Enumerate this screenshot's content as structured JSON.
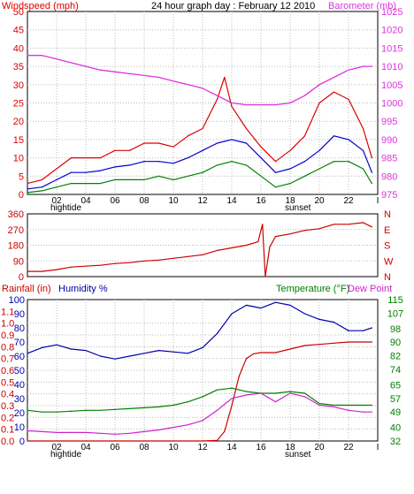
{
  "colors": {
    "wind": "#dd0000",
    "gust": "#dd0000",
    "avgwind": "#0000cc",
    "lowwind": "#008000",
    "baro": "#dd33dd",
    "direction": "#cc0000",
    "rain": "#cc0000",
    "humidity": "#0000aa",
    "temperature": "#008000",
    "dewpoint": "#cc22cc",
    "axis": "#000000",
    "grid": "#b8b8b8"
  },
  "header": {
    "wind_label": "Windspeed (mph)",
    "title": "24 hour graph day : February 12 2010",
    "baro_label": "Barometer (mb)",
    "rain_label": "Rainfall (in)",
    "humidity_label": "Humidity %",
    "temp_label": "Temperature (°F)",
    "dew_label": "Dew Point"
  },
  "markers": {
    "hightide": "hightide",
    "sunset": "sunset"
  },
  "chart_data": [
    {
      "id": "wind",
      "type": "line",
      "title": "24 hour graph day : February 12 2010",
      "x_ticks": [
        "02",
        "04",
        "06",
        "08",
        "10",
        "12",
        "14",
        "16",
        "18",
        "20",
        "22",
        "I"
      ],
      "xlim": [
        0,
        24
      ],
      "y_left": {
        "label": "Windspeed (mph)",
        "ticks": [
          0,
          5,
          10,
          15,
          20,
          25,
          30,
          35,
          40,
          45,
          50
        ],
        "lim": [
          0,
          50
        ]
      },
      "y_right": {
        "label": "Barometer (mb)",
        "ticks": [
          975,
          980,
          985,
          990,
          995,
          1000,
          1005,
          1010,
          1015,
          1020,
          1025
        ],
        "lim": [
          975,
          1025
        ]
      },
      "grid": true,
      "series": [
        {
          "key": "gust",
          "axis": "left",
          "x": [
            0,
            1,
            2,
            3,
            4,
            5,
            6,
            7,
            8,
            9,
            10,
            11,
            12,
            13,
            13.5,
            14,
            15,
            16,
            17,
            18,
            19,
            20,
            21,
            22,
            23,
            23.6
          ],
          "y": [
            3,
            4,
            7,
            10,
            10,
            10,
            12,
            12,
            14,
            14,
            13,
            16,
            18,
            26,
            32,
            24,
            18,
            13,
            9,
            12,
            16,
            25,
            28,
            26,
            18,
            10
          ]
        },
        {
          "key": "avgwind",
          "axis": "left",
          "x": [
            0,
            1,
            2,
            3,
            4,
            5,
            6,
            7,
            8,
            9,
            10,
            11,
            12,
            13,
            14,
            15,
            16,
            17,
            18,
            19,
            20,
            21,
            22,
            23,
            23.6
          ],
          "y": [
            1.5,
            2,
            4,
            6,
            6,
            6.5,
            7.5,
            8,
            9,
            9,
            8.5,
            10,
            12,
            14,
            15,
            14,
            10,
            6,
            7,
            9,
            12,
            16,
            15,
            12,
            6
          ]
        },
        {
          "key": "lowwind",
          "axis": "left",
          "x": [
            0,
            1,
            2,
            3,
            4,
            5,
            6,
            7,
            8,
            9,
            10,
            11,
            12,
            13,
            14,
            15,
            16,
            17,
            18,
            19,
            20,
            21,
            22,
            23,
            23.6
          ],
          "y": [
            0.5,
            1,
            2,
            3,
            3,
            3,
            4,
            4,
            4,
            5,
            4,
            5,
            6,
            8,
            9,
            8,
            5,
            2,
            3,
            5,
            7,
            9,
            9,
            7,
            3
          ]
        },
        {
          "key": "baro",
          "axis": "right",
          "x": [
            0,
            1,
            2,
            3,
            4,
            5,
            6,
            7,
            8,
            9,
            10,
            11,
            12,
            13,
            14,
            15,
            16,
            17,
            18,
            19,
            20,
            21,
            22,
            23,
            23.6
          ],
          "y": [
            1013,
            1013,
            1012,
            1011,
            1010,
            1009,
            1008.5,
            1008,
            1007.5,
            1007,
            1006,
            1005,
            1004,
            1002,
            1000,
            999.5,
            999.5,
            999.5,
            1000,
            1002,
            1005,
            1007,
            1009,
            1010,
            1010
          ]
        }
      ]
    },
    {
      "id": "direction",
      "type": "line",
      "x_ticks": [
        "02",
        "04",
        "06",
        "08",
        "10",
        "12",
        "14",
        "16",
        "18",
        "20",
        "22",
        "I"
      ],
      "xlim": [
        0,
        24
      ],
      "y_left": {
        "ticks": [
          0,
          90,
          180,
          270,
          360
        ],
        "lim": [
          0,
          360
        ]
      },
      "y_right": {
        "ticks": [
          "N",
          "W",
          "S",
          "E",
          "N"
        ]
      },
      "grid": true,
      "series": [
        {
          "key": "direction",
          "axis": "left",
          "x": [
            0,
            1,
            2,
            3,
            4,
            5,
            6,
            7,
            8,
            9,
            10,
            11,
            12,
            13,
            14,
            15,
            15.8,
            16.1,
            16.3,
            16.6,
            17,
            18,
            19,
            20,
            21,
            22,
            23,
            23.6
          ],
          "y": [
            30,
            30,
            40,
            55,
            60,
            65,
            75,
            80,
            90,
            95,
            105,
            115,
            125,
            150,
            165,
            180,
            200,
            300,
            0,
            170,
            230,
            245,
            265,
            275,
            300,
            300,
            310,
            285
          ]
        }
      ]
    },
    {
      "id": "climate",
      "type": "line",
      "x_ticks": [
        "02",
        "04",
        "06",
        "08",
        "10",
        "12",
        "14",
        "16",
        "18",
        "20",
        "22",
        "I"
      ],
      "xlim": [
        0,
        24
      ],
      "y_left_outer": {
        "label": "Rainfall (in)",
        "ticks": [
          0.0,
          0.1,
          0.2,
          0.3,
          0.4,
          0.5,
          0.6,
          0.7,
          0.8,
          0.9,
          1.0,
          1.1
        ],
        "lim": [
          0,
          1.2
        ]
      },
      "y_left_inner": {
        "label": "Humidity %",
        "ticks": [
          0,
          10,
          20,
          30,
          40,
          50,
          60,
          70,
          80,
          90,
          100
        ],
        "lim": [
          0,
          100
        ]
      },
      "y_right": {
        "label": "Temperature (°F)",
        "ticks": [
          32,
          40,
          49,
          57,
          65,
          74,
          82,
          90,
          98,
          107,
          115
        ],
        "lim": [
          32,
          115
        ]
      },
      "grid": true,
      "series": [
        {
          "key": "rain",
          "axis": "left_outer",
          "x": [
            0,
            12,
            13,
            13.5,
            14,
            14.5,
            15,
            15.5,
            16,
            17,
            18,
            19,
            20,
            21,
            22,
            23,
            23.6
          ],
          "y": [
            0,
            0,
            0.005,
            0.08,
            0.3,
            0.55,
            0.7,
            0.74,
            0.75,
            0.75,
            0.78,
            0.81,
            0.82,
            0.83,
            0.84,
            0.84,
            0.84
          ]
        },
        {
          "key": "humidity",
          "axis": "left_inner",
          "x": [
            0,
            1,
            2,
            3,
            4,
            5,
            6,
            7,
            8,
            9,
            10,
            11,
            12,
            13,
            14,
            15,
            16,
            17,
            18,
            19,
            20,
            21,
            22,
            23,
            23.6
          ],
          "y": [
            62,
            66,
            68,
            65,
            64,
            60,
            58,
            60,
            62,
            64,
            63,
            62,
            66,
            76,
            90,
            96,
            94,
            98,
            96,
            90,
            86,
            84,
            78,
            78,
            80
          ]
        },
        {
          "key": "temperature",
          "axis": "right",
          "x": [
            0,
            1,
            2,
            3,
            4,
            5,
            6,
            7,
            8,
            9,
            10,
            11,
            12,
            13,
            14,
            15,
            16,
            17,
            18,
            19,
            20,
            21,
            22,
            23,
            23.6
          ],
          "y": [
            50,
            49,
            49,
            49.5,
            50,
            50,
            50.5,
            51,
            51.5,
            52,
            53,
            55,
            58,
            62,
            63,
            61,
            60,
            60,
            61,
            60,
            54,
            53,
            53,
            53,
            53
          ]
        },
        {
          "key": "dewpoint",
          "axis": "right",
          "x": [
            0,
            1,
            2,
            3,
            4,
            5,
            6,
            7,
            8,
            9,
            10,
            11,
            12,
            13,
            14,
            15,
            16,
            17,
            18,
            19,
            20,
            21,
            22,
            23,
            23.6
          ],
          "y": [
            38,
            37.5,
            37,
            37,
            37,
            36.5,
            36,
            36.5,
            37.5,
            38.5,
            40,
            41.5,
            44,
            50,
            57,
            59,
            60,
            55,
            60,
            58,
            53,
            52,
            50,
            49,
            49
          ]
        }
      ]
    }
  ]
}
